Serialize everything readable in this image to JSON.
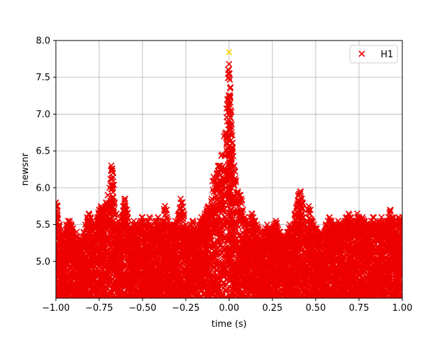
{
  "chart_data": {
    "type": "scatter",
    "title": "",
    "xlabel": "time (s)",
    "ylabel": "newsnr",
    "xlim": [
      -1.0,
      1.0
    ],
    "ylim": [
      4.5,
      8.0
    ],
    "grid": true,
    "legend_placement": "top-right",
    "x_ticks": [
      -1.0,
      -0.75,
      -0.5,
      -0.25,
      0.0,
      0.25,
      0.5,
      0.75,
      1.0
    ],
    "x_tick_labels": [
      "−1.00",
      "−0.75",
      "−0.50",
      "−0.25",
      "0.00",
      "0.25",
      "0.50",
      "0.75",
      "1.00"
    ],
    "y_ticks": [
      5.0,
      5.5,
      6.0,
      6.5,
      7.0,
      7.5,
      8.0
    ],
    "y_tick_labels": [
      "5.0",
      "5.5",
      "6.0",
      "6.5",
      "7.0",
      "7.5",
      "8.0"
    ],
    "series": [
      {
        "name": "H1",
        "marker": "x",
        "color": "#ee0000",
        "points": [
          [
            -1.0,
            5.8
          ],
          [
            -0.99,
            5.75
          ],
          [
            -0.98,
            5.5
          ],
          [
            -0.97,
            5.35
          ],
          [
            -0.96,
            5.3
          ],
          [
            -0.95,
            5.4
          ],
          [
            -0.94,
            5.5
          ],
          [
            -0.93,
            5.55
          ],
          [
            -0.92,
            5.55
          ],
          [
            -0.91,
            5.5
          ],
          [
            -0.9,
            5.45
          ],
          [
            -0.89,
            5.3
          ],
          [
            -0.88,
            5.4
          ],
          [
            -0.87,
            5.3
          ],
          [
            -0.86,
            5.25
          ],
          [
            -0.85,
            5.3
          ],
          [
            -0.84,
            5.4
          ],
          [
            -0.83,
            5.5
          ],
          [
            -0.82,
            5.6
          ],
          [
            -0.81,
            5.65
          ],
          [
            -0.8,
            5.6
          ],
          [
            -0.79,
            5.55
          ],
          [
            -0.78,
            5.45
          ],
          [
            -0.77,
            5.5
          ],
          [
            -0.76,
            5.6
          ],
          [
            -0.75,
            5.7
          ],
          [
            -0.74,
            5.75
          ],
          [
            -0.73,
            5.7
          ],
          [
            -0.72,
            5.65
          ],
          [
            -0.71,
            5.8
          ],
          [
            -0.7,
            5.9
          ],
          [
            -0.69,
            6.0
          ],
          [
            -0.68,
            6.3
          ],
          [
            -0.67,
            6.2
          ],
          [
            -0.66,
            5.8
          ],
          [
            -0.65,
            5.65
          ],
          [
            -0.64,
            5.55
          ],
          [
            -0.63,
            5.5
          ],
          [
            -0.62,
            5.6
          ],
          [
            -0.61,
            5.75
          ],
          [
            -0.6,
            5.85
          ],
          [
            -0.59,
            5.7
          ],
          [
            -0.58,
            5.5
          ],
          [
            -0.57,
            5.4
          ],
          [
            -0.56,
            5.45
          ],
          [
            -0.55,
            5.55
          ],
          [
            -0.54,
            5.5
          ],
          [
            -0.53,
            5.45
          ],
          [
            -0.52,
            5.4
          ],
          [
            -0.51,
            5.55
          ],
          [
            -0.5,
            5.6
          ],
          [
            -0.49,
            5.55
          ],
          [
            -0.48,
            5.5
          ],
          [
            -0.47,
            5.55
          ],
          [
            -0.46,
            5.6
          ],
          [
            -0.45,
            5.5
          ],
          [
            -0.44,
            5.45
          ],
          [
            -0.43,
            5.45
          ],
          [
            -0.42,
            5.55
          ],
          [
            -0.41,
            5.6
          ],
          [
            -0.4,
            5.5
          ],
          [
            -0.39,
            5.45
          ],
          [
            -0.38,
            5.55
          ],
          [
            -0.37,
            5.75
          ],
          [
            -0.36,
            5.7
          ],
          [
            -0.35,
            5.55
          ],
          [
            -0.34,
            5.5
          ],
          [
            -0.33,
            5.45
          ],
          [
            -0.32,
            5.5
          ],
          [
            -0.31,
            5.55
          ],
          [
            -0.3,
            5.5
          ],
          [
            -0.29,
            5.65
          ],
          [
            -0.28,
            5.85
          ],
          [
            -0.27,
            5.8
          ],
          [
            -0.26,
            5.65
          ],
          [
            -0.25,
            5.5
          ],
          [
            -0.24,
            5.45
          ],
          [
            -0.23,
            5.4
          ],
          [
            -0.22,
            5.5
          ],
          [
            -0.21,
            5.55
          ],
          [
            -0.2,
            5.45
          ],
          [
            -0.19,
            5.4
          ],
          [
            -0.18,
            5.5
          ],
          [
            -0.17,
            5.55
          ],
          [
            -0.16,
            5.6
          ],
          [
            -0.15,
            5.55
          ],
          [
            -0.14,
            5.65
          ],
          [
            -0.13,
            5.7
          ],
          [
            -0.12,
            5.75
          ],
          [
            -0.11,
            5.7
          ],
          [
            -0.1,
            5.85
          ],
          [
            -0.09,
            6.15
          ],
          [
            -0.08,
            6.1
          ],
          [
            -0.07,
            6.2
          ],
          [
            -0.06,
            6.3
          ],
          [
            -0.05,
            6.3
          ],
          [
            -0.04,
            6.45
          ],
          [
            -0.03,
            6.7
          ],
          [
            -0.02,
            6.75
          ],
          [
            -0.01,
            7.2
          ],
          [
            0.0,
            7.68
          ],
          [
            0.003,
            7.55
          ],
          [
            0.006,
            7.35
          ],
          [
            0.01,
            7.05
          ],
          [
            0.015,
            6.75
          ],
          [
            0.02,
            6.55
          ],
          [
            0.03,
            6.3
          ],
          [
            0.04,
            6.1
          ],
          [
            0.05,
            5.95
          ],
          [
            0.06,
            5.9
          ],
          [
            0.07,
            5.85
          ],
          [
            0.08,
            5.7
          ],
          [
            0.09,
            5.6
          ],
          [
            0.1,
            5.55
          ],
          [
            0.11,
            5.5
          ],
          [
            0.12,
            5.6
          ],
          [
            0.13,
            5.65
          ],
          [
            0.14,
            5.6
          ],
          [
            0.15,
            5.55
          ],
          [
            0.16,
            5.5
          ],
          [
            0.17,
            5.45
          ],
          [
            0.18,
            5.4
          ],
          [
            0.19,
            5.35
          ],
          [
            0.2,
            5.4
          ],
          [
            0.21,
            5.45
          ],
          [
            0.22,
            5.5
          ],
          [
            0.23,
            5.45
          ],
          [
            0.24,
            5.4
          ],
          [
            0.25,
            5.45
          ],
          [
            0.26,
            5.5
          ],
          [
            0.27,
            5.55
          ],
          [
            0.28,
            5.45
          ],
          [
            0.29,
            5.4
          ],
          [
            0.3,
            5.35
          ],
          [
            0.31,
            5.3
          ],
          [
            0.32,
            5.35
          ],
          [
            0.33,
            5.3
          ],
          [
            0.34,
            5.4
          ],
          [
            0.35,
            5.5
          ],
          [
            0.36,
            5.45
          ],
          [
            0.37,
            5.5
          ],
          [
            0.38,
            5.65
          ],
          [
            0.39,
            5.75
          ],
          [
            0.4,
            5.9
          ],
          [
            0.41,
            5.95
          ],
          [
            0.42,
            5.85
          ],
          [
            0.43,
            5.6
          ],
          [
            0.44,
            5.5
          ],
          [
            0.45,
            5.55
          ],
          [
            0.46,
            5.75
          ],
          [
            0.47,
            5.7
          ],
          [
            0.48,
            5.55
          ],
          [
            0.49,
            5.5
          ],
          [
            0.5,
            5.45
          ],
          [
            0.51,
            5.4
          ],
          [
            0.52,
            5.35
          ],
          [
            0.53,
            5.4
          ],
          [
            0.54,
            5.35
          ],
          [
            0.55,
            5.4
          ],
          [
            0.56,
            5.5
          ],
          [
            0.57,
            5.55
          ],
          [
            0.58,
            5.6
          ],
          [
            0.59,
            5.55
          ],
          [
            0.6,
            5.5
          ],
          [
            0.61,
            5.45
          ],
          [
            0.62,
            5.5
          ],
          [
            0.63,
            5.55
          ],
          [
            0.64,
            5.5
          ],
          [
            0.65,
            5.45
          ],
          [
            0.66,
            5.5
          ],
          [
            0.67,
            5.55
          ],
          [
            0.68,
            5.6
          ],
          [
            0.69,
            5.65
          ],
          [
            0.7,
            5.6
          ],
          [
            0.71,
            5.55
          ],
          [
            0.72,
            5.5
          ],
          [
            0.73,
            5.55
          ],
          [
            0.74,
            5.65
          ],
          [
            0.75,
            5.6
          ],
          [
            0.76,
            5.55
          ],
          [
            0.77,
            5.6
          ],
          [
            0.78,
            5.55
          ],
          [
            0.79,
            5.5
          ],
          [
            0.8,
            5.45
          ],
          [
            0.81,
            5.5
          ],
          [
            0.82,
            5.55
          ],
          [
            0.83,
            5.6
          ],
          [
            0.84,
            5.5
          ],
          [
            0.85,
            5.45
          ],
          [
            0.86,
            5.5
          ],
          [
            0.87,
            5.55
          ],
          [
            0.88,
            5.6
          ],
          [
            0.89,
            5.55
          ],
          [
            0.9,
            5.5
          ],
          [
            0.91,
            5.55
          ],
          [
            0.92,
            5.6
          ],
          [
            0.93,
            5.7
          ],
          [
            0.94,
            5.6
          ],
          [
            0.95,
            5.55
          ],
          [
            0.96,
            5.5
          ],
          [
            0.97,
            5.55
          ],
          [
            0.98,
            5.6
          ],
          [
            0.99,
            5.55
          ],
          [
            1.0,
            5.6
          ]
        ]
      }
    ],
    "highlight_points": [
      {
        "x": 0.0,
        "y": 7.84,
        "color": "#ffd700",
        "marker": "x"
      }
    ]
  }
}
